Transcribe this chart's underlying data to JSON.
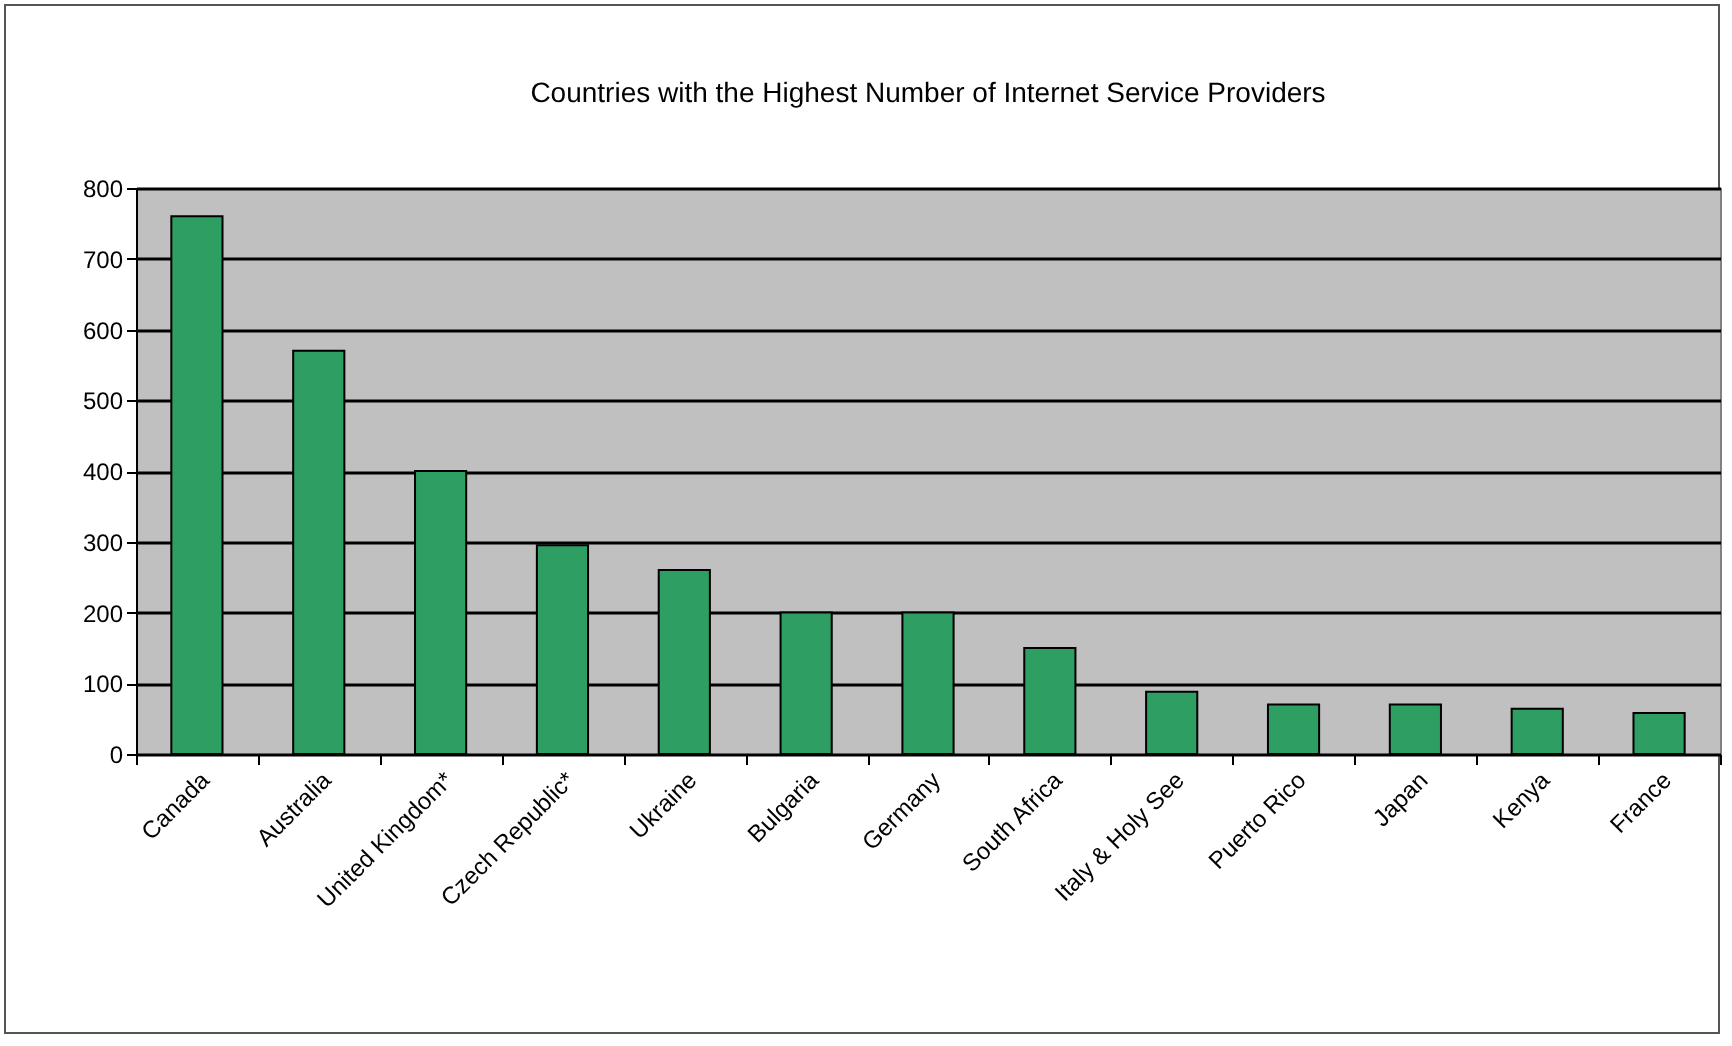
{
  "chart_data": {
    "type": "bar",
    "title": "Countries with the Highest Number of Internet Service Providers",
    "categories": [
      "Canada",
      "Australia",
      "United Kingdom*",
      "Czech Republic*",
      "Ukraine",
      "Bulgaria",
      "Germany",
      "South Africa",
      "Italy & Holy See",
      "Puerto Rico",
      "Japan",
      "Kenya",
      "France"
    ],
    "values": [
      760,
      570,
      400,
      295,
      260,
      200,
      200,
      150,
      88,
      70,
      70,
      64,
      58
    ],
    "color": "#2e9e63",
    "ylim": [
      0,
      800
    ],
    "yticks": [
      0,
      100,
      200,
      300,
      400,
      500,
      600,
      700,
      800
    ],
    "grid": "y"
  }
}
